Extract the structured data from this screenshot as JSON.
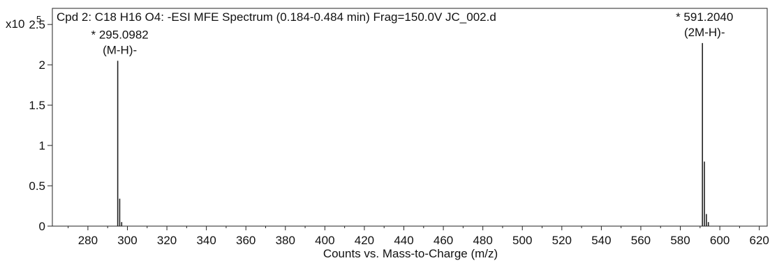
{
  "chart_data": {
    "type": "bar",
    "title": "Cpd 2: C18 H16 O4: -ESI MFE Spectrum (0.184-0.484 min) Frag=150.0V JC_002.d",
    "xlabel": "Counts vs. Mass-to-Charge (m/z)",
    "ylabel": "",
    "y_multiplier_label": "x10",
    "y_multiplier_exponent": "5",
    "xlim": [
      262,
      624
    ],
    "ylim": [
      0,
      2.7
    ],
    "x_ticks": [
      "280",
      "300",
      "320",
      "340",
      "360",
      "380",
      "400",
      "420",
      "440",
      "460",
      "480",
      "500",
      "520",
      "540",
      "560",
      "580",
      "600",
      "620"
    ],
    "y_ticks": [
      "0",
      "0.5",
      "1",
      "1.5",
      "2",
      "2.5"
    ],
    "grid": false,
    "series": [
      {
        "peaks": [
          {
            "mz": 295.1,
            "intensity": 2.05
          },
          {
            "mz": 296.1,
            "intensity": 0.34
          },
          {
            "mz": 297.1,
            "intensity": 0.05
          },
          {
            "mz": 591.2,
            "intensity": 2.27
          },
          {
            "mz": 592.2,
            "intensity": 0.8
          },
          {
            "mz": 593.2,
            "intensity": 0.15
          },
          {
            "mz": 594.2,
            "intensity": 0.05
          }
        ]
      }
    ],
    "annotations": [
      {
        "mz_label": "* 295.0982",
        "ion_label": "(M-H)-",
        "mz": 295.1,
        "intensity": 2.05
      },
      {
        "mz_label": "* 591.2040",
        "ion_label": "(2M-H)-",
        "mz": 591.2,
        "intensity": 2.27
      }
    ]
  }
}
